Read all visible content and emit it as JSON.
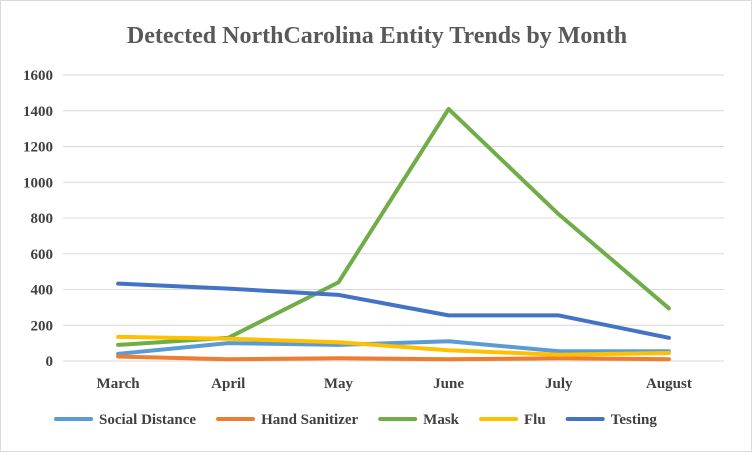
{
  "chart_data": {
    "type": "line",
    "title": "Detected NorthCarolina Entity Trends by Month",
    "xlabel": "",
    "ylabel": "",
    "categories": [
      "March",
      "April",
      "May",
      "June",
      "July",
      "August"
    ],
    "ylim": [
      0,
      1600
    ],
    "yticks": [
      0,
      200,
      400,
      600,
      800,
      1000,
      1200,
      1400,
      1600
    ],
    "grid": true,
    "legend_position": "bottom",
    "series": [
      {
        "name": "Social Distance",
        "color": "#5B9BD5",
        "values": [
          40,
          100,
          90,
          110,
          55,
          55
        ]
      },
      {
        "name": "Hand Sanitizer",
        "color": "#ED7D31",
        "values": [
          25,
          10,
          15,
          10,
          15,
          10
        ]
      },
      {
        "name": "Mask",
        "color": "#70AD47",
        "values": [
          90,
          130,
          440,
          1410,
          820,
          295
        ]
      },
      {
        "name": "Flu",
        "color": "#FFC000",
        "values": [
          135,
          125,
          105,
          60,
          35,
          45
        ]
      },
      {
        "name": "Testing",
        "color": "#4472C4",
        "values": [
          433,
          405,
          370,
          255,
          255,
          130
        ]
      }
    ]
  }
}
